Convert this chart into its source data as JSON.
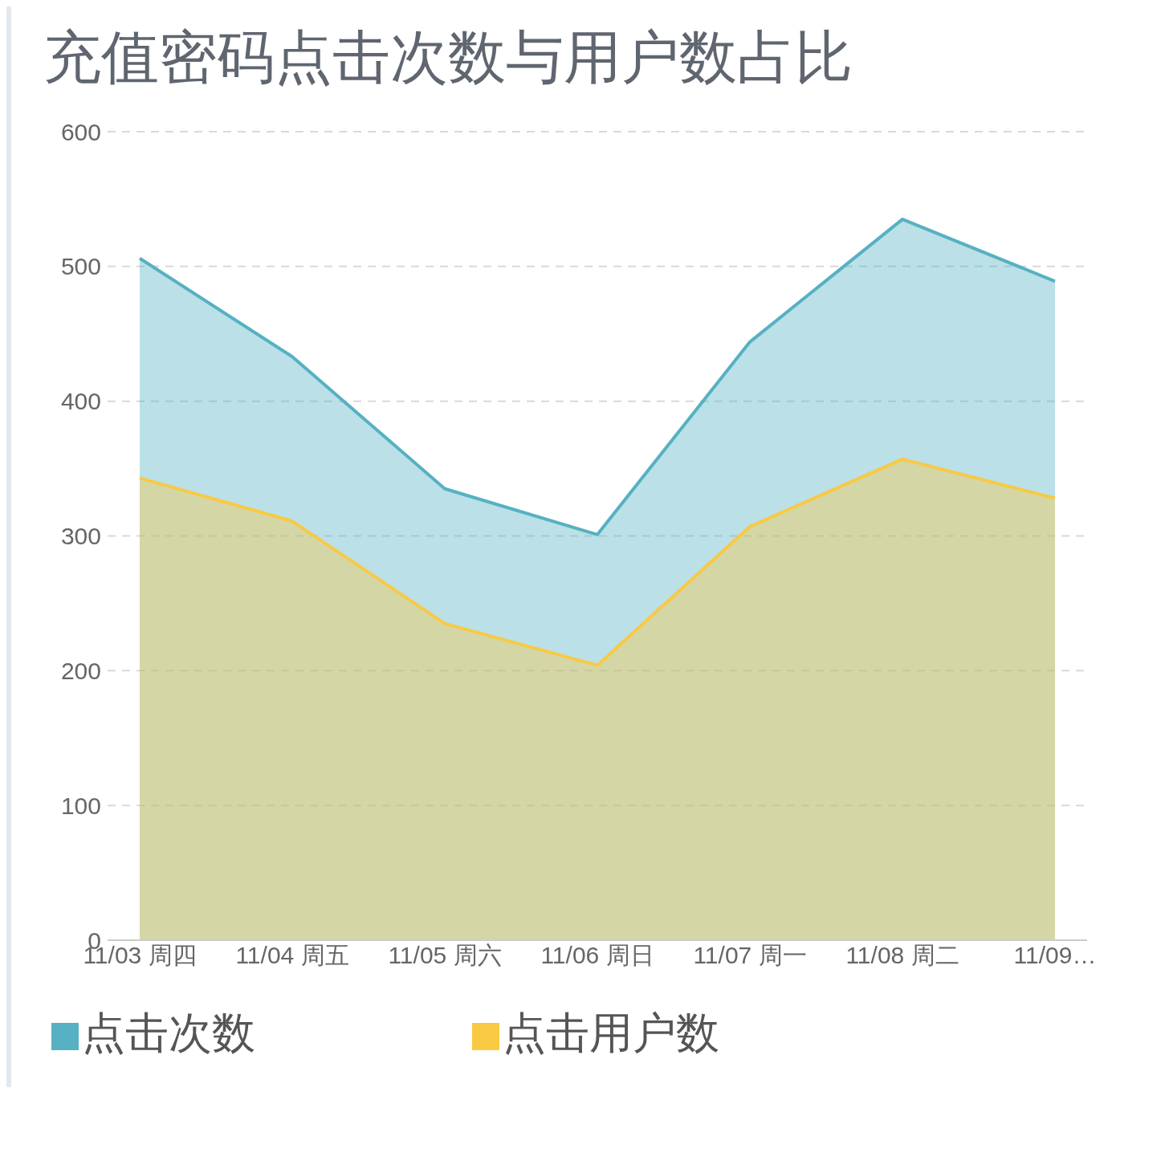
{
  "chart_data": {
    "type": "area",
    "title": "充值密码点击次数与用户数占比",
    "categories": [
      "11/03 周四",
      "11/04 周五",
      "11/05 周六",
      "11/06 周日",
      "11/07 周一",
      "11/08 周二",
      "11/09…"
    ],
    "series": [
      {
        "name": "点击次数",
        "color": "#56b1c2",
        "values": [
          506,
          433,
          335,
          301,
          444,
          535,
          489
        ]
      },
      {
        "name": "点击用户数",
        "color": "#f9c943",
        "values": [
          343,
          311,
          235,
          204,
          307,
          357,
          328
        ]
      }
    ],
    "ylim": [
      0,
      600
    ],
    "yticks": [
      0,
      100,
      200,
      300,
      400,
      500,
      600
    ],
    "grid": "y",
    "legend": "bottom left",
    "marker": "none",
    "line_style": "solid"
  }
}
